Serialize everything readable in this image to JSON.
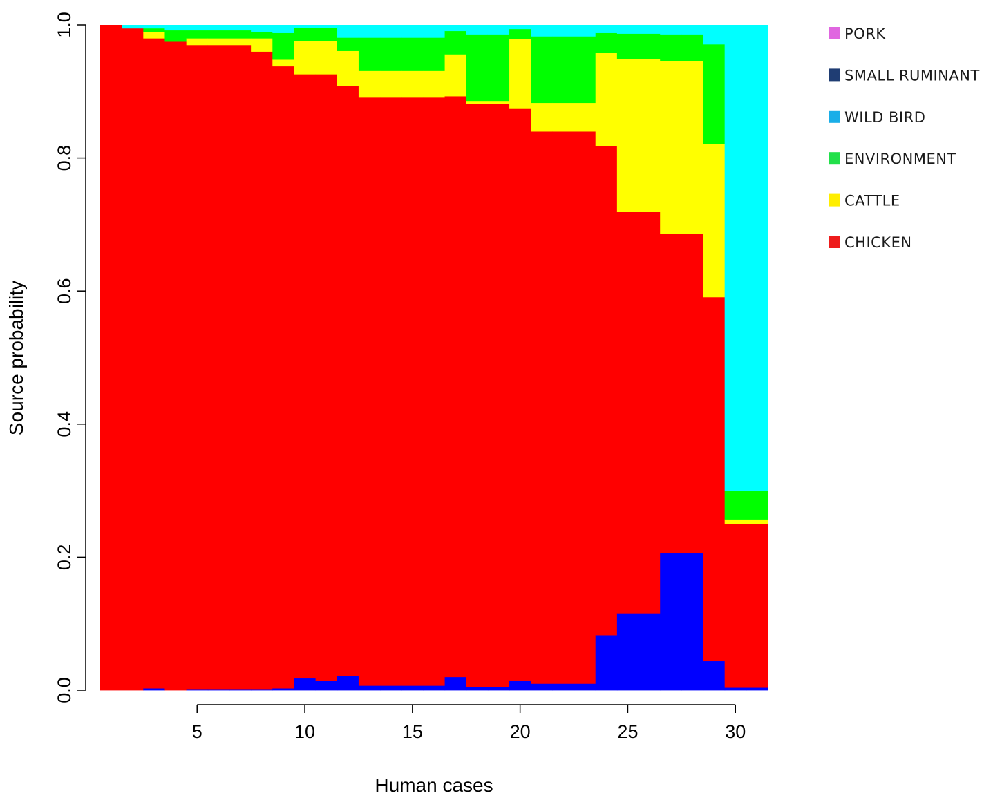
{
  "chart_data": {
    "type": "bar",
    "stacked": true,
    "xlabel": "Human cases",
    "ylabel": "Source probability",
    "ylim": [
      0,
      1
    ],
    "y_ticks": [
      "0.0",
      "0.2",
      "0.4",
      "0.6",
      "0.8",
      "1.0"
    ],
    "x_ticks": [
      "5",
      "10",
      "15",
      "20",
      "25",
      "30"
    ],
    "x": [
      1,
      2,
      3,
      4,
      5,
      6,
      7,
      8,
      9,
      10,
      11,
      12,
      13,
      14,
      15,
      16,
      17,
      18,
      19,
      20,
      21,
      22,
      23,
      24,
      25,
      26,
      27,
      28,
      29,
      30,
      31
    ],
    "legend_position": "top-right",
    "series": [
      {
        "name": "SMALL RUMINANT",
        "color": "#0000ff",
        "values": [
          0.0,
          0.0,
          0.003,
          0.0,
          0.002,
          0.002,
          0.002,
          0.002,
          0.003,
          0.018,
          0.014,
          0.022,
          0.007,
          0.007,
          0.007,
          0.007,
          0.02,
          0.005,
          0.005,
          0.015,
          0.01,
          0.01,
          0.01,
          0.083,
          0.116,
          0.116,
          0.206,
          0.206,
          0.044,
          0.004,
          0.004
        ]
      },
      {
        "name": "CHICKEN",
        "color": "#ff0000",
        "values": [
          1.0,
          0.995,
          0.977,
          0.975,
          0.968,
          0.968,
          0.968,
          0.958,
          0.935,
          0.908,
          0.912,
          0.886,
          0.884,
          0.884,
          0.884,
          0.884,
          0.873,
          0.876,
          0.876,
          0.859,
          0.83,
          0.83,
          0.83,
          0.735,
          0.603,
          0.603,
          0.48,
          0.48,
          0.547,
          0.246,
          0.246
        ]
      },
      {
        "name": "CATTLE",
        "color": "#ffff00",
        "values": [
          0.0,
          0.0,
          0.01,
          0.0,
          0.01,
          0.01,
          0.01,
          0.02,
          0.01,
          0.05,
          0.05,
          0.053,
          0.04,
          0.04,
          0.04,
          0.04,
          0.063,
          0.005,
          0.005,
          0.105,
          0.043,
          0.043,
          0.043,
          0.14,
          0.23,
          0.23,
          0.26,
          0.26,
          0.23,
          0.007,
          0.007
        ]
      },
      {
        "name": "ENVIRONMENT",
        "color": "#00ff00",
        "values": [
          0.0,
          0.0,
          0.005,
          0.017,
          0.012,
          0.012,
          0.012,
          0.01,
          0.04,
          0.02,
          0.02,
          0.02,
          0.05,
          0.05,
          0.05,
          0.05,
          0.035,
          0.1,
          0.1,
          0.015,
          0.1,
          0.1,
          0.1,
          0.03,
          0.038,
          0.038,
          0.04,
          0.04,
          0.15,
          0.043,
          0.043
        ]
      },
      {
        "name": "WILD BIRD",
        "color": "#00ffff",
        "values": [
          0.0,
          0.005,
          0.005,
          0.008,
          0.008,
          0.008,
          0.008,
          0.01,
          0.012,
          0.004,
          0.004,
          0.019,
          0.019,
          0.019,
          0.019,
          0.019,
          0.009,
          0.014,
          0.014,
          0.006,
          0.017,
          0.017,
          0.017,
          0.012,
          0.013,
          0.013,
          0.014,
          0.014,
          0.029,
          0.7,
          0.7
        ]
      },
      {
        "name": "PORK",
        "color": "#ff00ff",
        "values": [
          0.0,
          0.0,
          0.0,
          0.0,
          0.0,
          0.0,
          0.0,
          0.0,
          0.0,
          0.0,
          0.0,
          0.0,
          0.0,
          0.0,
          0.0,
          0.0,
          0.0,
          0.0,
          0.0,
          0.0,
          0.0,
          0.0,
          0.0,
          0.0,
          0.0,
          0.0,
          0.0,
          0.0,
          0.0,
          0.0,
          0.0
        ]
      }
    ],
    "legend": [
      {
        "label": "PORK",
        "color": "#e066e0"
      },
      {
        "label": "SMALL RUMINANT",
        "color": "#1f3d73"
      },
      {
        "label": "WILD BIRD",
        "color": "#1aaee8"
      },
      {
        "label": "ENVIRONMENT",
        "color": "#22e04a"
      },
      {
        "label": "CATTLE",
        "color": "#ffee00"
      },
      {
        "label": "CHICKEN",
        "color": "#ee1c1c"
      }
    ]
  }
}
